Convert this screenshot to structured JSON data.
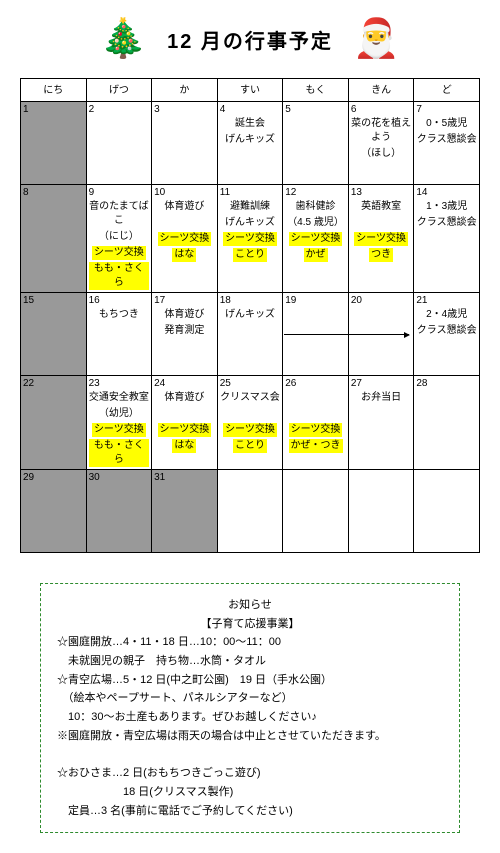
{
  "title": "12 月の行事予定",
  "headers": [
    "にち",
    "げつ",
    "か",
    "すい",
    "もく",
    "きん",
    "ど"
  ],
  "colors": {
    "highlight": "#ffff00",
    "grayCell": "#999999",
    "noticeBorder": "#2e8b2e"
  },
  "weeks": [
    [
      {
        "num": "1",
        "gray": true,
        "events": []
      },
      {
        "num": "2",
        "events": []
      },
      {
        "num": "3",
        "events": []
      },
      {
        "num": "4",
        "events": [
          {
            "t": "誕生会"
          },
          {
            "t": "げんキッズ"
          }
        ]
      },
      {
        "num": "5",
        "events": []
      },
      {
        "num": "6",
        "events": [
          {
            "t": "菜の花を植えよう"
          },
          {
            "t": "（ほし）"
          }
        ]
      },
      {
        "num": "7",
        "events": [
          {
            "t": "0・5歳児"
          },
          {
            "t": "クラス懇談会"
          }
        ]
      }
    ],
    [
      {
        "num": "8",
        "gray": true,
        "events": []
      },
      {
        "num": "9",
        "events": [
          {
            "t": "音のたまてばこ"
          },
          {
            "t": "（にじ）"
          },
          {
            "t": "シーツ交換",
            "hl": true
          },
          {
            "t": "もも・さくら",
            "hl": true
          }
        ]
      },
      {
        "num": "10",
        "events": [
          {
            "t": "体育遊び"
          },
          {
            "t": ""
          },
          {
            "t": "シーツ交換",
            "hl": true
          },
          {
            "t": "はな",
            "hl": true
          }
        ]
      },
      {
        "num": "11",
        "events": [
          {
            "t": "避難訓練"
          },
          {
            "t": "げんキッズ"
          },
          {
            "t": "シーツ交換",
            "hl": true
          },
          {
            "t": "ことり",
            "hl": true
          }
        ]
      },
      {
        "num": "12",
        "events": [
          {
            "t": "歯科健診"
          },
          {
            "t": "（4.5 歳児）"
          },
          {
            "t": "シーツ交換",
            "hl": true
          },
          {
            "t": "かぜ",
            "hl": true
          }
        ]
      },
      {
        "num": "13",
        "events": [
          {
            "t": "英語教室"
          },
          {
            "t": ""
          },
          {
            "t": "シーツ交換",
            "hl": true
          },
          {
            "t": "つき",
            "hl": true
          }
        ]
      },
      {
        "num": "14",
        "events": [
          {
            "t": "1・3歳児"
          },
          {
            "t": "クラス懇談会"
          }
        ]
      }
    ],
    [
      {
        "num": "15",
        "gray": true,
        "events": []
      },
      {
        "num": "16",
        "events": [
          {
            "t": "もちつき"
          }
        ]
      },
      {
        "num": "17",
        "events": [
          {
            "t": "体育遊び"
          },
          {
            "t": "発育測定"
          }
        ]
      },
      {
        "num": "18",
        "events": [
          {
            "t": "げんキッズ"
          }
        ]
      },
      {
        "num": "19",
        "events": []
      },
      {
        "num": "20",
        "events": [],
        "arrow": true
      },
      {
        "num": "21",
        "events": [
          {
            "t": "2・4歳児"
          },
          {
            "t": "クラス懇談会"
          }
        ]
      }
    ],
    [
      {
        "num": "22",
        "gray": true,
        "events": []
      },
      {
        "num": "23",
        "events": [
          {
            "t": "交通安全教室"
          },
          {
            "t": "（幼児）"
          },
          {
            "t": "シーツ交換",
            "hl": true
          },
          {
            "t": "もも・さくら",
            "hl": true
          }
        ]
      },
      {
        "num": "24",
        "events": [
          {
            "t": "体育遊び"
          },
          {
            "t": ""
          },
          {
            "t": "シーツ交換",
            "hl": true
          },
          {
            "t": "はな",
            "hl": true
          }
        ]
      },
      {
        "num": "25",
        "events": [
          {
            "t": "クリスマス会"
          },
          {
            "t": ""
          },
          {
            "t": "シーツ交換",
            "hl": true
          },
          {
            "t": "ことり",
            "hl": true
          }
        ]
      },
      {
        "num": "26",
        "events": [
          {
            "t": ""
          },
          {
            "t": ""
          },
          {
            "t": "シーツ交換",
            "hl": true
          },
          {
            "t": "かぜ・つき",
            "hl": true
          }
        ]
      },
      {
        "num": "27",
        "events": [
          {
            "t": "お弁当日"
          }
        ]
      },
      {
        "num": "28",
        "events": []
      }
    ],
    [
      {
        "num": "29",
        "gray": true,
        "events": []
      },
      {
        "num": "30",
        "gray": true,
        "events": []
      },
      {
        "num": "31",
        "gray": true,
        "events": []
      },
      {
        "num": "",
        "events": []
      },
      {
        "num": "",
        "events": []
      },
      {
        "num": "",
        "events": []
      },
      {
        "num": "",
        "events": []
      }
    ]
  ],
  "notice": {
    "title1": "お知らせ",
    "title2": "【子育て応援事業】",
    "lines": [
      "☆園庭開放…4・11・18 日…10：00～11：00",
      "　未就園児の親子　持ち物…水筒・タオル",
      "☆青空広場…5・12 日(中之町公園)　19 日（手水公園）",
      "　（絵本やペープサート、パネルシアターなど）",
      "　10：30～お土産もあります。ぜひお越しください♪",
      "※園庭開放・青空広場は雨天の場合は中止とさせていただきます。",
      "",
      "☆おひさま…2 日(おもちつきごっこ遊び)",
      "　　　　　　18 日(クリスマス製作)",
      "　定員…3 名(事前に電話でご予約してください)"
    ]
  }
}
